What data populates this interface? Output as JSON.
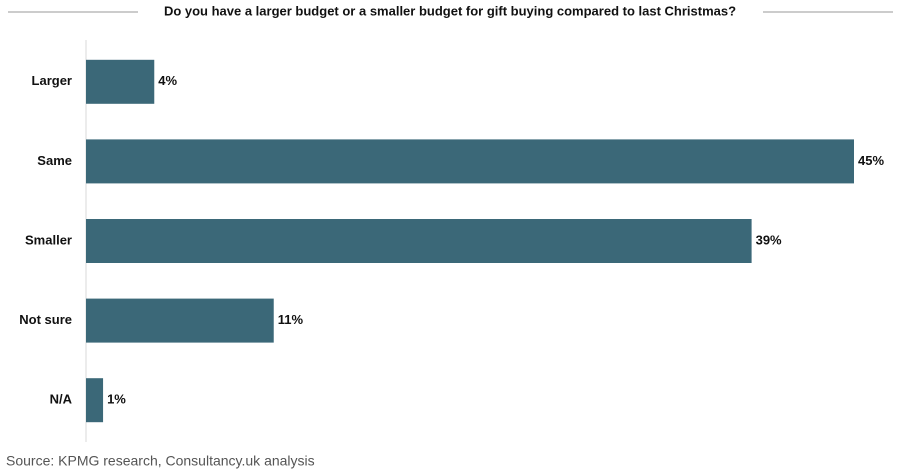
{
  "chart_data": {
    "type": "bar",
    "orientation": "horizontal",
    "title": "Do you have a larger budget or a smaller budget for gift buying compared to last Christmas?",
    "categories": [
      "Larger",
      "Same",
      "Smaller",
      "Not sure",
      "N/A"
    ],
    "values": [
      4,
      45,
      39,
      11,
      1
    ],
    "value_labels": [
      "4%",
      "45%",
      "39%",
      "11%",
      "1%"
    ],
    "color": "#3b6878",
    "xlim": [
      0,
      45
    ],
    "source": "Source: KPMG research, Consultancy.uk analysis"
  }
}
